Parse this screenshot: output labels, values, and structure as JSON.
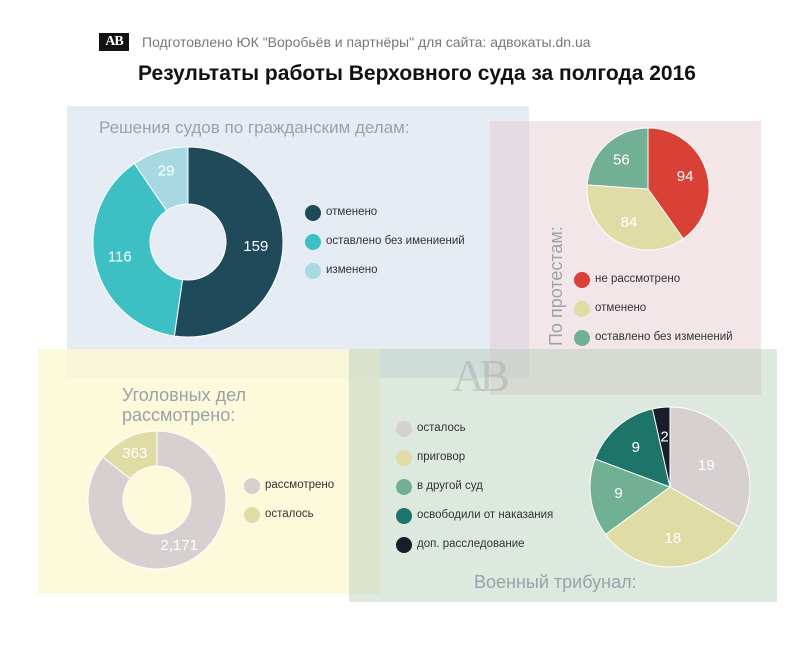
{
  "header": {
    "logo": "AB",
    "source": "Подготовлено ЮК \"Воробьёв и партнёры\" для сайта: адвокаты.dn.ua",
    "title": "Результаты работы Верховного суда за полгода 2016"
  },
  "watermark": "AB",
  "chart_data": [
    {
      "type": "pie",
      "variant": "donut",
      "title": "Решения судов по гражданским делам:",
      "categories": [
        "отменено",
        "оставлено без имениений",
        "изменено"
      ],
      "values": [
        159,
        116,
        29
      ],
      "value_labels": [
        "159",
        "116",
        "29"
      ],
      "colors": [
        "#1e4a5a",
        "#3dbfc3",
        "#a8d8e2"
      ],
      "legend": "right"
    },
    {
      "type": "pie",
      "title": "По протестам:",
      "categories": [
        "не рассмотрено",
        "отменено",
        "оставлено без изменений"
      ],
      "values": [
        94,
        84,
        56
      ],
      "value_labels": [
        "94",
        "84",
        "56"
      ],
      "colors": [
        "#d94036",
        "#e0dca5",
        "#72b095"
      ],
      "legend": "bottom"
    },
    {
      "type": "pie",
      "variant": "donut",
      "title": "Уголовных дел рассмотрено:",
      "categories": [
        "рассмотрено",
        "осталось"
      ],
      "values": [
        2171,
        363
      ],
      "value_labels": [
        "2,171",
        "363"
      ],
      "colors": [
        "#d6d0d0",
        "#e0dca5"
      ],
      "legend": "right"
    },
    {
      "type": "pie",
      "title": "Военный трибунал:",
      "categories": [
        "осталось",
        "приговор",
        "в другой суд",
        "освободили от наказания",
        "доп. расследование"
      ],
      "values": [
        19,
        18,
        9,
        9,
        2
      ],
      "value_labels": [
        "19",
        "18",
        "9",
        "9",
        "2"
      ],
      "colors": [
        "#d6d0d0",
        "#e0dca5",
        "#72b095",
        "#1d7468",
        "#1a1d2a"
      ],
      "legend": "left"
    }
  ]
}
